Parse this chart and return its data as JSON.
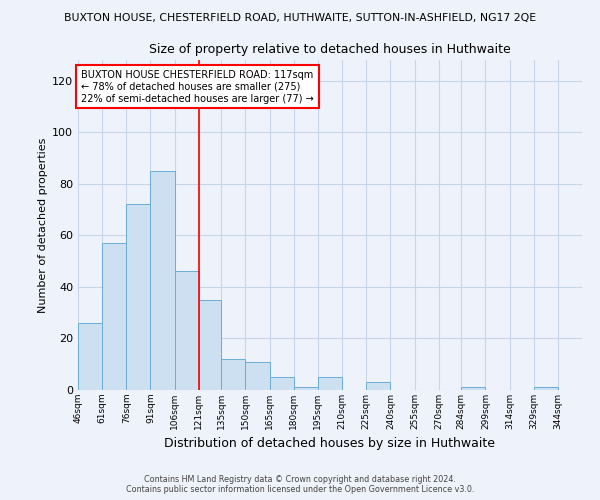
{
  "title_main": "BUXTON HOUSE, CHESTERFIELD ROAD, HUTHWAITE, SUTTON-IN-ASHFIELD, NG17 2QE",
  "title_sub": "Size of property relative to detached houses in Huthwaite",
  "xlabel": "Distribution of detached houses by size in Huthwaite",
  "ylabel": "Number of detached properties",
  "bin_labels": [
    "46sqm",
    "61sqm",
    "76sqm",
    "91sqm",
    "106sqm",
    "121sqm",
    "135sqm",
    "150sqm",
    "165sqm",
    "180sqm",
    "195sqm",
    "210sqm",
    "225sqm",
    "240sqm",
    "255sqm",
    "270sqm",
    "284sqm",
    "299sqm",
    "314sqm",
    "329sqm",
    "344sqm"
  ],
  "bin_edges": [
    46,
    61,
    76,
    91,
    106,
    121,
    135,
    150,
    165,
    180,
    195,
    210,
    225,
    240,
    255,
    270,
    284,
    299,
    314,
    329,
    344,
    359
  ],
  "bar_heights": [
    26,
    57,
    72,
    85,
    46,
    35,
    12,
    11,
    5,
    1,
    5,
    0,
    3,
    0,
    0,
    0,
    1,
    0,
    0,
    1,
    0
  ],
  "bar_facecolor": "#cde0f2",
  "bar_edgecolor": "#6aaed6",
  "vline_x": 121,
  "vline_color": "red",
  "annotation_title": "BUXTON HOUSE CHESTERFIELD ROAD: 117sqm",
  "annotation_line1": "← 78% of detached houses are smaller (275)",
  "annotation_line2": "22% of semi-detached houses are larger (77) →",
  "annotation_box_color": "white",
  "annotation_box_edge": "red",
  "ylim": [
    0,
    128
  ],
  "yticks": [
    0,
    20,
    40,
    60,
    80,
    100,
    120
  ],
  "grid_color": "#c8d4e8",
  "background_color": "#eef2fa",
  "footer1": "Contains HM Land Registry data © Crown copyright and database right 2024.",
  "footer2": "Contains public sector information licensed under the Open Government Licence v3.0."
}
